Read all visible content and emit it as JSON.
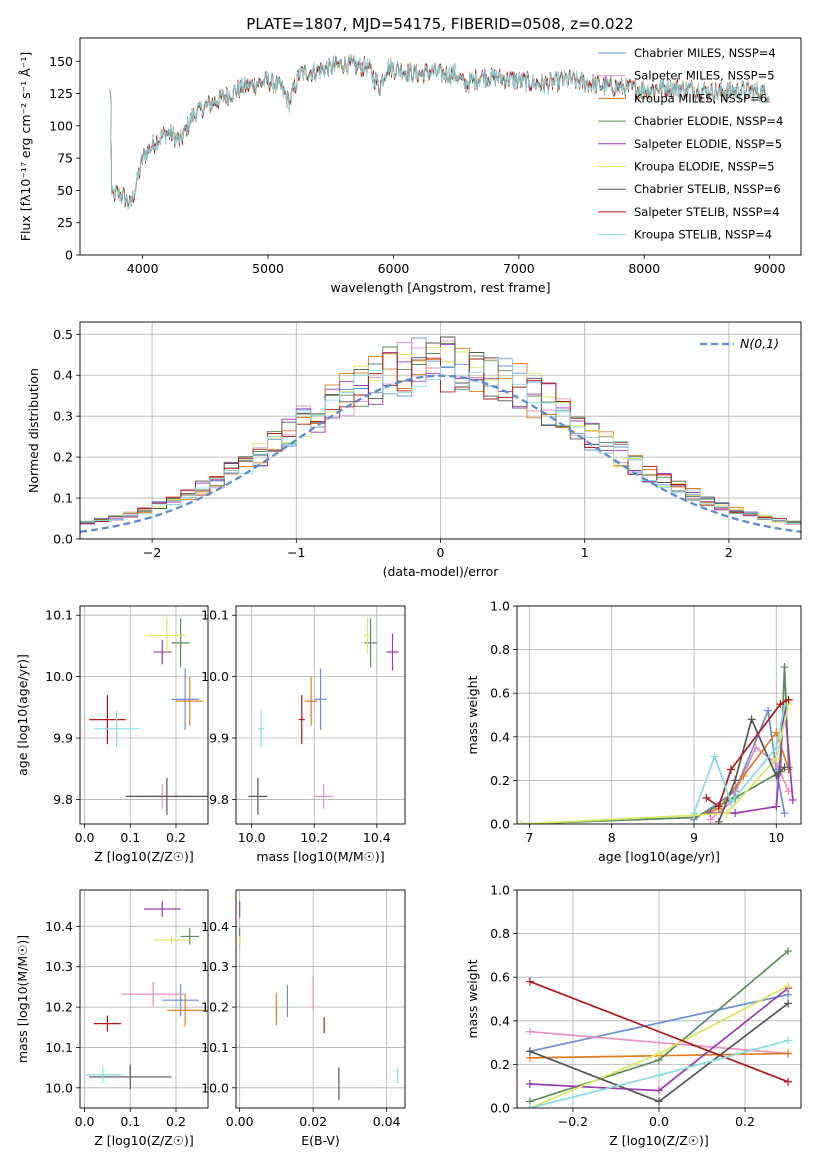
{
  "figure_title": "PLATE=1807, MJD=54175, FIBERID=0508, z=0.022",
  "colors": {
    "series": [
      "#6a8fd8",
      "#e78fc0",
      "#e07b20",
      "#5a8a5a",
      "#9a3ab0",
      "#d8e860",
      "#555555",
      "#b01818",
      "#88dce0"
    ]
  },
  "chart_data": [
    {
      "name": "spectrum",
      "type": "line",
      "xlabel": "wavelength [Angstrom, rest frame]",
      "ylabel": "Flux [fλ10⁻¹⁷ erg cm⁻² s⁻¹ Å⁻¹]",
      "xlim": [
        3500,
        9250
      ],
      "ylim": [
        0,
        168
      ],
      "xticks": [
        4000,
        5000,
        6000,
        7000,
        8000,
        9000
      ],
      "yticks": [
        0,
        25,
        50,
        75,
        100,
        125,
        150
      ],
      "grid": false,
      "legend_position": "top-right",
      "legend": [
        "Chabrier MILES, N_SSP=4",
        "Salpeter MILES, N_SSP=5",
        "Kroupa MILES, N_SSP=6",
        "Chabrier ELODIE, N_SSP=4",
        "Salpeter ELODIE, N_SSP=5",
        "Kroupa ELODIE, N_SSP=5",
        "Chabrier STELIB, N_SSP=6",
        "Salpeter STELIB, N_SSP=4",
        "Kroupa STELIB, N_SSP=4"
      ],
      "continuum": [
        [
          3750,
          45
        ],
        [
          3800,
          48
        ],
        [
          3850,
          45
        ],
        [
          3900,
          38
        ],
        [
          3950,
          55
        ],
        [
          4000,
          75
        ],
        [
          4100,
          88
        ],
        [
          4200,
          95
        ],
        [
          4300,
          88
        ],
        [
          4400,
          108
        ],
        [
          4500,
          115
        ],
        [
          4600,
          120
        ],
        [
          4700,
          125
        ],
        [
          4800,
          130
        ],
        [
          4900,
          132
        ],
        [
          5000,
          135
        ],
        [
          5100,
          130
        ],
        [
          5170,
          118
        ],
        [
          5250,
          140
        ],
        [
          5400,
          143
        ],
        [
          5500,
          145
        ],
        [
          5600,
          148
        ],
        [
          5700,
          146
        ],
        [
          5800,
          145
        ],
        [
          5890,
          130
        ],
        [
          5950,
          146
        ],
        [
          6100,
          142
        ],
        [
          6200,
          140
        ],
        [
          6300,
          142
        ],
        [
          6400,
          140
        ],
        [
          6500,
          140
        ],
        [
          6563,
          132
        ],
        [
          6700,
          138
        ],
        [
          6800,
          138
        ],
        [
          7000,
          135
        ],
        [
          7200,
          132
        ],
        [
          7400,
          136
        ],
        [
          7600,
          132
        ],
        [
          7800,
          130
        ],
        [
          8000,
          128
        ],
        [
          8200,
          130
        ],
        [
          8400,
          128
        ],
        [
          8600,
          126
        ],
        [
          8800,
          128
        ],
        [
          9000,
          125
        ]
      ],
      "dropouts": [
        {
          "x": 3900,
          "series": "Kroupa ELODIE"
        },
        {
          "x": 6780,
          "series": "Kroupa ELODIE"
        },
        {
          "x": 7420,
          "series": "Salpeter STELIB"
        }
      ]
    },
    {
      "name": "residual-histogram",
      "type": "step-histogram",
      "xlabel": "(data-model)/error",
      "ylabel": "Normed distribution",
      "xlim": [
        -2.5,
        2.5
      ],
      "ylim": [
        0,
        0.53
      ],
      "xticks": [
        -2,
        -1,
        0,
        1,
        2
      ],
      "yticks": [
        0.0,
        0.1,
        0.2,
        0.3,
        0.4,
        0.5
      ],
      "grid": true,
      "bin_width": 0.1,
      "legend_position": "top-right",
      "legend": [
        "N(0,1)"
      ],
      "reference_curve": "normal(0,1)"
    },
    {
      "name": "age-vs-Z",
      "type": "errorbar",
      "xlabel": "Z [log10(Z/Z☉)]",
      "ylabel": "age [log10(age/yr)]",
      "xlim": [
        -0.01,
        0.27
      ],
      "ylim": [
        9.76,
        10.115
      ],
      "xticks": [
        0.0,
        0.1,
        0.2
      ],
      "yticks": [
        9.8,
        9.9,
        10.0,
        10.1
      ],
      "grid": true,
      "points": [
        {
          "x": 0.22,
          "xerr": 0.03,
          "y": 9.963,
          "yerr": 0.05
        },
        {
          "x": 0.17,
          "xerr": 0.05,
          "y": 9.805,
          "yerr": 0.02
        },
        {
          "x": 0.23,
          "xerr": 0.03,
          "y": 9.96,
          "yerr": 0.04
        },
        {
          "x": 0.21,
          "xerr": 0.02,
          "y": 10.055,
          "yerr": 0.04
        },
        {
          "x": 0.17,
          "xerr": 0.02,
          "y": 10.04,
          "yerr": 0.02
        },
        {
          "x": 0.18,
          "xerr": 0.04,
          "y": 10.067,
          "yerr": 0.03
        },
        {
          "x": 0.18,
          "xerr": 0.09,
          "y": 9.805,
          "yerr": 0.03
        },
        {
          "x": 0.05,
          "xerr": 0.04,
          "y": 9.93,
          "yerr": 0.04
        },
        {
          "x": 0.07,
          "xerr": 0.05,
          "y": 9.915,
          "yerr": 0.03
        }
      ]
    },
    {
      "name": "age-vs-mass",
      "type": "errorbar",
      "xlabel": "mass [log10(M/M☉)]",
      "ylabel": "",
      "xlim": [
        9.95,
        10.49
      ],
      "ylim": [
        9.76,
        10.115
      ],
      "xticks": [
        10.0,
        10.2,
        10.4
      ],
      "yticks": [
        9.8,
        9.9,
        10.0,
        10.1
      ],
      "grid": true,
      "points": [
        {
          "x": 10.22,
          "xerr": 0.02,
          "y": 9.963,
          "yerr": 0.05
        },
        {
          "x": 10.23,
          "xerr": 0.03,
          "y": 9.805,
          "yerr": 0.02
        },
        {
          "x": 10.19,
          "xerr": 0.02,
          "y": 9.96,
          "yerr": 0.04
        },
        {
          "x": 10.38,
          "xerr": 0.02,
          "y": 10.055,
          "yerr": 0.04
        },
        {
          "x": 10.45,
          "xerr": 0.02,
          "y": 10.04,
          "yerr": 0.03
        },
        {
          "x": 10.37,
          "xerr": 0.01,
          "y": 10.067,
          "yerr": 0.03
        },
        {
          "x": 10.02,
          "xerr": 0.03,
          "y": 9.805,
          "yerr": 0.03
        },
        {
          "x": 10.16,
          "xerr": 0.01,
          "y": 9.93,
          "yerr": 0.04
        },
        {
          "x": 10.03,
          "xerr": 0.01,
          "y": 9.915,
          "yerr": 0.03
        }
      ]
    },
    {
      "name": "mass-weight-vs-age",
      "type": "line",
      "xlabel": "age [log10(age/yr)]",
      "ylabel": "mass weight",
      "xlim": [
        6.85,
        10.3
      ],
      "ylim": [
        0,
        1.0
      ],
      "xticks": [
        7,
        8,
        9,
        10
      ],
      "yticks": [
        0.0,
        0.2,
        0.4,
        0.6,
        0.8,
        1.0
      ],
      "grid": true,
      "series": [
        {
          "x": [
            9.0,
            9.5,
            9.9,
            10.0,
            10.1
          ],
          "y": [
            0.02,
            0.15,
            0.52,
            0.25,
            0.05
          ]
        },
        {
          "x": [
            9.2,
            9.45,
            9.75,
            10.0,
            10.15
          ],
          "y": [
            0.02,
            0.1,
            0.35,
            0.28,
            0.15
          ]
        },
        {
          "x": [
            9.0,
            9.3,
            9.6,
            10.0,
            10.15
          ],
          "y": [
            0.03,
            0.07,
            0.22,
            0.42,
            0.25
          ]
        },
        {
          "x": [
            6.9,
            9.0,
            9.5,
            10.05,
            10.1,
            10.15
          ],
          "y": [
            0.0,
            0.03,
            0.12,
            0.24,
            0.72,
            0.26
          ]
        },
        {
          "x": [
            9.2,
            9.5,
            10.0,
            10.1,
            10.2
          ],
          "y": [
            0.05,
            0.05,
            0.08,
            0.55,
            0.11
          ]
        },
        {
          "x": [
            6.9,
            9.0,
            9.4,
            10.0,
            10.15
          ],
          "y": [
            0.0,
            0.04,
            0.05,
            0.3,
            0.55
          ]
        },
        {
          "x": [
            9.3,
            9.5,
            9.7,
            10.0,
            10.1
          ],
          "y": [
            0.01,
            0.2,
            0.48,
            0.22,
            0.26
          ]
        },
        {
          "x": [
            9.15,
            9.3,
            9.45,
            10.05,
            10.15
          ],
          "y": [
            0.12,
            0.08,
            0.25,
            0.55,
            0.57
          ]
        },
        {
          "x": [
            9.0,
            9.25,
            9.45,
            10.0,
            10.1
          ],
          "y": [
            0.05,
            0.31,
            0.1,
            0.35,
            0.54
          ]
        }
      ]
    },
    {
      "name": "mass-vs-Z",
      "type": "errorbar",
      "xlabel": "Z [log10(Z/Z☉)]",
      "ylabel": "mass [log10(M/M☉)]",
      "xlim": [
        -0.01,
        0.27
      ],
      "ylim": [
        9.95,
        10.49
      ],
      "xticks": [
        0.0,
        0.1,
        0.2
      ],
      "yticks": [
        10.0,
        10.1,
        10.2,
        10.3,
        10.4
      ],
      "grid": true,
      "points": [
        {
          "x": 0.21,
          "xerr": 0.04,
          "y": 10.217,
          "yerr": 0.04
        },
        {
          "x": 0.15,
          "xerr": 0.07,
          "y": 10.232,
          "yerr": 0.03
        },
        {
          "x": 0.22,
          "xerr": 0.04,
          "y": 10.192,
          "yerr": 0.04
        },
        {
          "x": 0.23,
          "xerr": 0.02,
          "y": 10.375,
          "yerr": 0.02
        },
        {
          "x": 0.17,
          "xerr": 0.04,
          "y": 10.443,
          "yerr": 0.02
        },
        {
          "x": 0.19,
          "xerr": 0.04,
          "y": 10.366,
          "yerr": 0.01
        },
        {
          "x": 0.1,
          "xerr": 0.09,
          "y": 10.027,
          "yerr": 0.03
        },
        {
          "x": 0.05,
          "xerr": 0.03,
          "y": 10.159,
          "yerr": 0.02
        },
        {
          "x": 0.04,
          "xerr": 0.04,
          "y": 10.032,
          "yerr": 0.02
        }
      ]
    },
    {
      "name": "mass-vs-EBV",
      "type": "errorbar",
      "xlabel": "E(B-V)",
      "ylabel": "",
      "xlim": [
        -0.001,
        0.045
      ],
      "ylim": [
        9.95,
        10.49
      ],
      "xticks": [
        0.0,
        0.02,
        0.04
      ],
      "yticks": [
        10.0,
        10.1,
        10.2,
        10.3,
        10.4
      ],
      "grid": true,
      "points": [
        {
          "x": 0.013,
          "xerr": 0,
          "y": 10.215,
          "yerr": 0.04
        },
        {
          "x": 0.02,
          "xerr": 0,
          "y": 10.235,
          "yerr": 0.04
        },
        {
          "x": 0.01,
          "xerr": 0,
          "y": 10.195,
          "yerr": 0.04
        },
        {
          "x": 0.0,
          "xerr": 0,
          "y": 10.375,
          "yerr": 0.02
        },
        {
          "x": 0.0,
          "xerr": 0,
          "y": 10.443,
          "yerr": 0.02
        },
        {
          "x": 0.0,
          "xerr": 0,
          "y": 10.366,
          "yerr": 0.01
        },
        {
          "x": 0.027,
          "xerr": 0,
          "y": 10.01,
          "yerr": 0.04
        },
        {
          "x": 0.023,
          "xerr": 0,
          "y": 10.155,
          "yerr": 0.02
        },
        {
          "x": 0.043,
          "xerr": 0,
          "y": 10.03,
          "yerr": 0.02
        }
      ]
    },
    {
      "name": "mass-weight-vs-Z",
      "type": "line",
      "xlabel": "Z [log10(Z/Z☉)]",
      "ylabel": "mass weight",
      "xlim": [
        -0.33,
        0.33
      ],
      "ylim": [
        0,
        1.0
      ],
      "xticks": [
        -0.2,
        0.0,
        0.2
      ],
      "yticks": [
        0.0,
        0.2,
        0.4,
        0.6,
        0.8,
        1.0
      ],
      "grid": true,
      "series": [
        {
          "x": [
            -0.3,
            0.3
          ],
          "y": [
            0.26,
            0.52
          ]
        },
        {
          "x": [
            -0.3,
            0.3
          ],
          "y": [
            0.35,
            0.25
          ]
        },
        {
          "x": [
            -0.3,
            0.0,
            0.3
          ],
          "y": [
            0.23,
            0.24,
            0.25
          ]
        },
        {
          "x": [
            -0.3,
            0.0,
            0.3
          ],
          "y": [
            0.03,
            0.22,
            0.72
          ]
        },
        {
          "x": [
            -0.3,
            0.0,
            0.3
          ],
          "y": [
            0.11,
            0.08,
            0.55
          ]
        },
        {
          "x": [
            -0.3,
            0.0,
            0.3
          ],
          "y": [
            0.0,
            0.25,
            0.56
          ]
        },
        {
          "x": [
            -0.3,
            0.0,
            0.3
          ],
          "y": [
            0.26,
            0.03,
            0.48
          ]
        },
        {
          "x": [
            -0.3,
            0.3
          ],
          "y": [
            0.58,
            0.12
          ]
        },
        {
          "x": [
            -0.3,
            0.0,
            0.3
          ],
          "y": [
            0.0,
            0.15,
            0.31
          ]
        }
      ]
    }
  ]
}
